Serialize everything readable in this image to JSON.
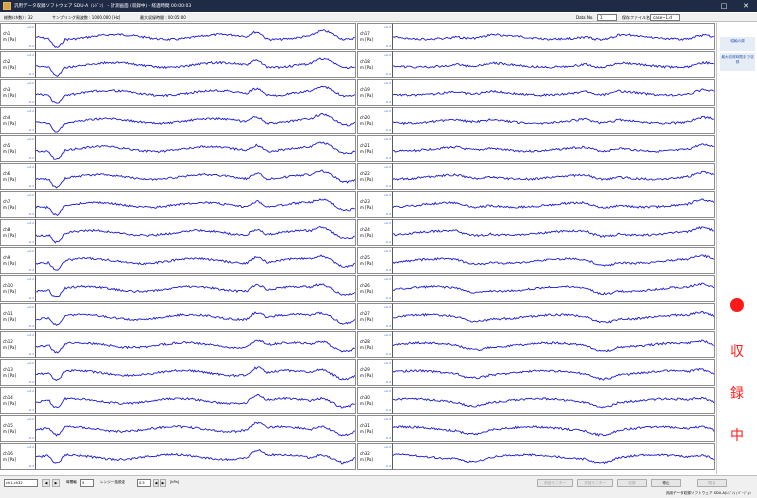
{
  "window": {
    "title": "汎用データ収録ソフトウェア SDU-A（ﾚｼﾞﾝ） - 計測画面 (収録中) - 経過時間 00:00:03",
    "buttons": [
      "□",
      "✕"
    ]
  },
  "info": {
    "channels": "総数(ch数) : 32",
    "sampling": "サンプリング周波数 : 1000.000 [Hz]",
    "max_time": "最大収録時間 : 00:05:00",
    "data_no_label": "Data No.",
    "data_no_value": "1",
    "save_file_label": "保存ファイル名",
    "save_file_value": "case~1.d"
  },
  "ranges": {
    "max": "+0.2",
    "min": "-0.2"
  },
  "channels_left": [
    {
      "name": "ch1",
      "unit": "m [Pa]"
    },
    {
      "name": "ch2",
      "unit": "m [Pa]"
    },
    {
      "name": "ch3",
      "unit": "m [Pa]"
    },
    {
      "name": "ch4",
      "unit": "m [Pa]"
    },
    {
      "name": "ch5",
      "unit": "m [Pa]"
    },
    {
      "name": "ch6",
      "unit": "m [Pa]"
    },
    {
      "name": "ch7",
      "unit": "m [Pa]"
    },
    {
      "name": "ch8",
      "unit": "m [Pa]"
    },
    {
      "name": "ch9",
      "unit": "m [Pa]"
    },
    {
      "name": "ch10",
      "unit": "m [Pa]"
    },
    {
      "name": "ch11",
      "unit": "m [Pa]"
    },
    {
      "name": "ch12",
      "unit": "m [Pa]"
    },
    {
      "name": "ch13",
      "unit": "m [Pa]"
    },
    {
      "name": "ch14",
      "unit": "m [Pa]"
    },
    {
      "name": "ch15",
      "unit": "m [Pa]"
    },
    {
      "name": "ch16",
      "unit": "m [Pa]"
    }
  ],
  "channels_right": [
    {
      "name": "ch17",
      "unit": "m [Pa]"
    },
    {
      "name": "ch18",
      "unit": "m [Pa]"
    },
    {
      "name": "ch19",
      "unit": "m [Pa]"
    },
    {
      "name": "ch20",
      "unit": "m [Pa]"
    },
    {
      "name": "ch21",
      "unit": "m [Pa]"
    },
    {
      "name": "ch22",
      "unit": "m [Pa]"
    },
    {
      "name": "ch23",
      "unit": "m [Pa]"
    },
    {
      "name": "ch24",
      "unit": "m [Pa]"
    },
    {
      "name": "ch25",
      "unit": "m [Pa]"
    },
    {
      "name": "ch26",
      "unit": "m [Pa]"
    },
    {
      "name": "ch27",
      "unit": "m [Pa]"
    },
    {
      "name": "ch28",
      "unit": "m [Pa]"
    },
    {
      "name": "ch29",
      "unit": "m [Pa]"
    },
    {
      "name": "ch30",
      "unit": "m [Pa]"
    },
    {
      "name": "ch31",
      "unit": "m [Pa]"
    },
    {
      "name": "ch32",
      "unit": "m [Pa]"
    }
  ],
  "side": {
    "btn1": "縦軸の調",
    "btn2": "最大収録時間まで収録",
    "rec_chars": [
      "収",
      "録",
      "中"
    ]
  },
  "bottom": {
    "page_value": "ch1-ch32",
    "nav_prev": "◀",
    "nav_next": "▶",
    "time_axis_label": "時間軸",
    "time_axis_value": "5",
    "range_label": "レンジ一括設定",
    "range_value": "0.5",
    "unit": "[kPa]",
    "btn_prev_monitor": "前回モニター",
    "btn_next_monitor": "次回モニター",
    "btn_record": "収録",
    "btn_stop": "停止",
    "btn_close": "閉る"
  },
  "status": {
    "text": "汎用データ収録ソフトウェア SDU-A(ﾚｼﾞﾝ) / ﾊﾞｰｼﾞｮﾝ"
  },
  "colors": {
    "trace": "#1a1ad6",
    "rec": "#ff1a1a",
    "titlebar": "#1f2a44"
  }
}
